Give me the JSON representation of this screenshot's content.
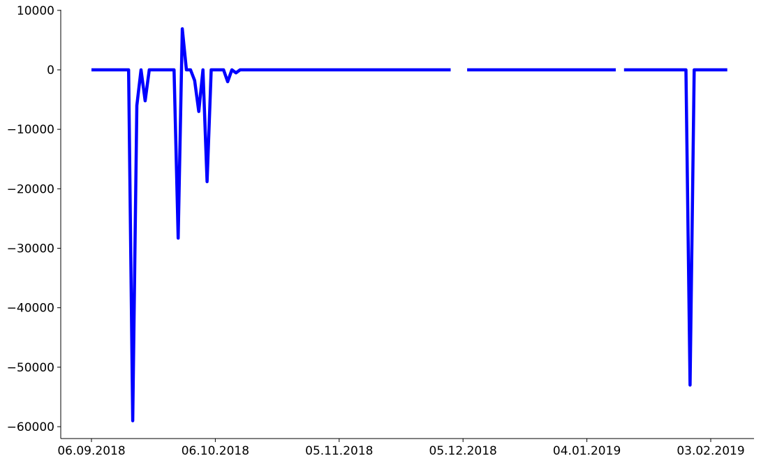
{
  "chart_data": {
    "type": "line",
    "title": "",
    "xlabel": "",
    "ylabel": "",
    "x_axis": {
      "type": "date",
      "range": [
        "2018-09-06",
        "2019-02-08"
      ],
      "ticks": [
        {
          "date": "2018-09-06",
          "label": "06.09.2018"
        },
        {
          "date": "2018-10-06",
          "label": "06.10.2018"
        },
        {
          "date": "2018-11-05",
          "label": "05.11.2018"
        },
        {
          "date": "2018-12-05",
          "label": "05.12.2018"
        },
        {
          "date": "2019-01-04",
          "label": "04.01.2019"
        },
        {
          "date": "2019-02-03",
          "label": "03.02.2019"
        }
      ]
    },
    "y_axis": {
      "range": [
        -62000,
        10000
      ],
      "ticks": [
        {
          "value": 10000,
          "label": "10000"
        },
        {
          "value": 0,
          "label": "0"
        },
        {
          "value": -10000,
          "label": "−10000"
        },
        {
          "value": -20000,
          "label": "−20000"
        },
        {
          "value": -30000,
          "label": "−30000"
        },
        {
          "value": -40000,
          "label": "−40000"
        },
        {
          "value": -50000,
          "label": "−50000"
        },
        {
          "value": -60000,
          "label": "−60000"
        }
      ]
    },
    "grid": false,
    "legend": "none",
    "series": [
      {
        "color": "#0000ff",
        "points": [
          [
            "2018-09-06",
            0
          ],
          [
            "2018-09-15",
            0
          ],
          [
            "2018-09-16",
            -59000
          ],
          [
            "2018-09-17",
            -6000
          ],
          [
            "2018-09-18",
            0
          ],
          [
            "2018-09-19",
            -5200
          ],
          [
            "2018-09-20",
            0
          ],
          [
            "2018-09-26",
            0
          ],
          [
            "2018-09-27",
            -28300
          ],
          [
            "2018-09-28",
            6900
          ],
          [
            "2018-09-29",
            0
          ],
          [
            "2018-09-30",
            0
          ],
          [
            "2018-10-01",
            -1800
          ],
          [
            "2018-10-02",
            -7000
          ],
          [
            "2018-10-03",
            0
          ],
          [
            "2018-10-04",
            -18800
          ],
          [
            "2018-10-05",
            0
          ],
          [
            "2018-10-08",
            0
          ],
          [
            "2018-10-09",
            -2000
          ],
          [
            "2018-10-10",
            0
          ],
          [
            "2018-10-11",
            -500
          ],
          [
            "2018-10-12",
            0
          ],
          [
            "2018-12-02",
            0
          ],
          null,
          [
            "2018-12-06",
            0
          ],
          [
            "2019-01-11",
            0
          ],
          null,
          [
            "2019-01-13",
            0
          ],
          [
            "2019-01-28",
            0
          ],
          [
            "2019-01-29",
            -53000
          ],
          [
            "2019-01-30",
            0
          ],
          [
            "2019-02-07",
            0
          ]
        ]
      }
    ]
  }
}
